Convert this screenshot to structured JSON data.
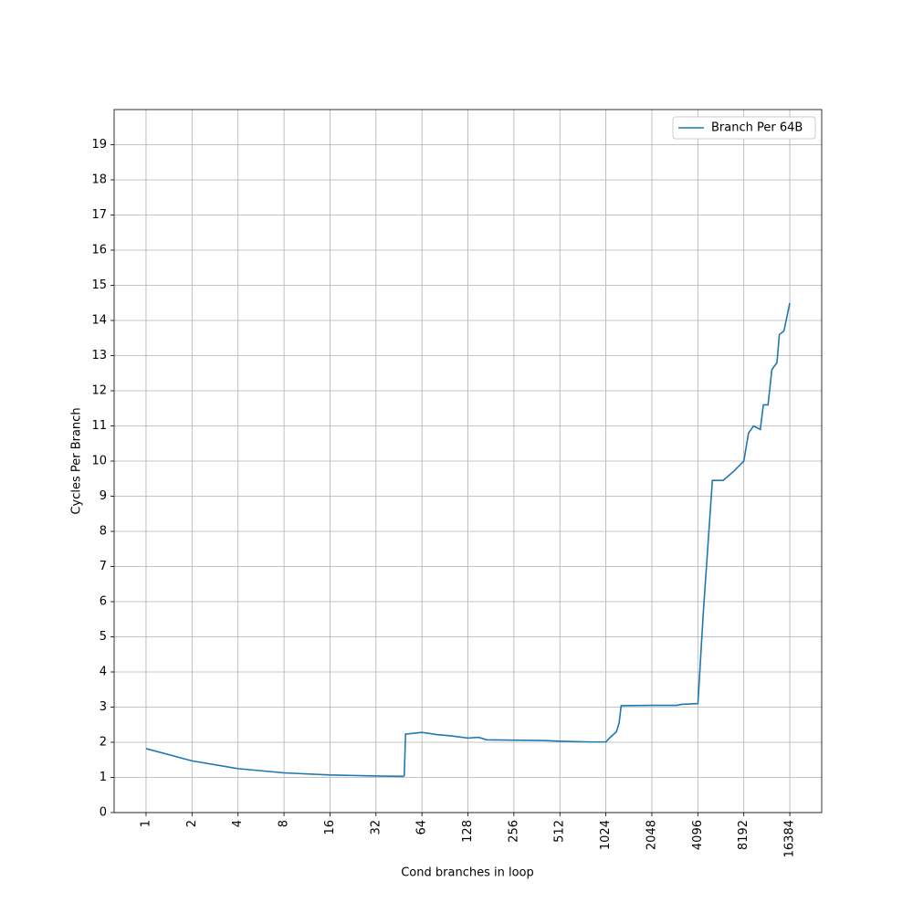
{
  "chart_data": {
    "type": "line",
    "xlabel": "Cond branches in loop",
    "ylabel": "Cycles Per Branch",
    "x": [
      1,
      2,
      4,
      8,
      16,
      32,
      48,
      49,
      50,
      64,
      80,
      100,
      128,
      150,
      170,
      256,
      400,
      512,
      800,
      1024,
      1100,
      1200,
      1250,
      1290,
      2048,
      3000,
      3200,
      4096,
      4100,
      4450,
      5100,
      5500,
      6000,
      7000,
      8192,
      8800,
      9500,
      10500,
      11000,
      11800,
      12500,
      13500,
      14000,
      15000,
      16384
    ],
    "series": [
      {
        "name": "Branch Per 64B",
        "color": "#1f77b4",
        "values": [
          1.82,
          1.47,
          1.25,
          1.13,
          1.07,
          1.04,
          1.03,
          1.05,
          2.23,
          2.28,
          2.22,
          2.18,
          2.12,
          2.14,
          2.07,
          2.06,
          2.05,
          2.03,
          2.01,
          2.01,
          2.15,
          2.3,
          2.55,
          3.04,
          3.05,
          3.05,
          3.08,
          3.1,
          3.1,
          5.7,
          9.45,
          9.45,
          9.45,
          9.7,
          10.0,
          10.8,
          11.0,
          10.9,
          11.6,
          11.6,
          12.6,
          12.8,
          13.6,
          13.7,
          14.5
        ]
      }
    ],
    "xscale": "log2",
    "xlim": [
      0.618,
      26500
    ],
    "xticks": [
      1,
      2,
      4,
      8,
      16,
      32,
      64,
      128,
      256,
      512,
      1024,
      2048,
      4096,
      8192,
      16384
    ],
    "ylim": [
      0,
      20
    ],
    "yticks": [
      0,
      1,
      2,
      3,
      4,
      5,
      6,
      7,
      8,
      9,
      10,
      11,
      12,
      13,
      14,
      15,
      16,
      17,
      18,
      19
    ],
    "grid": true,
    "legend": "upper-right"
  }
}
